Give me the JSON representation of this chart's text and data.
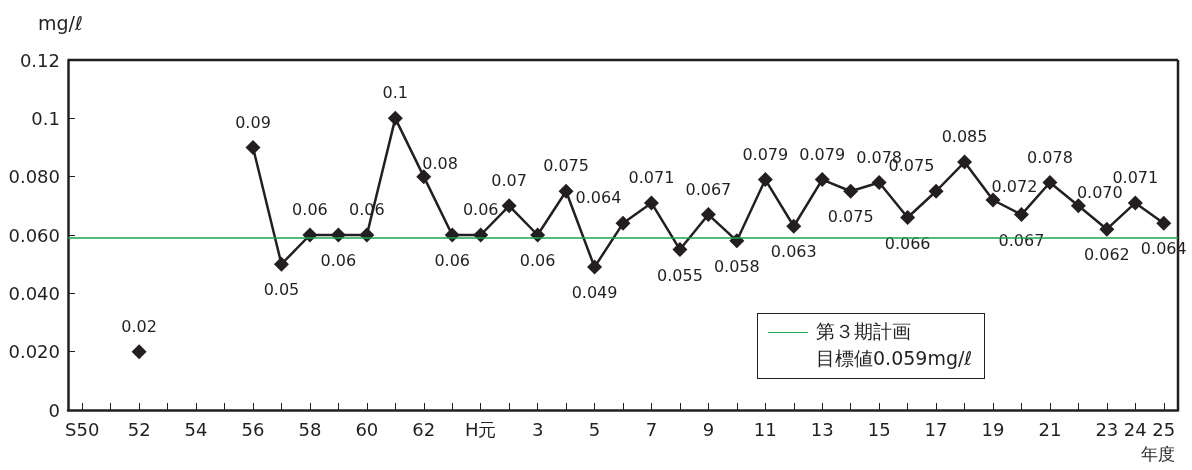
{
  "chart_data": {
    "type": "line",
    "ylabel": "mg/ℓ",
    "xlabel": "年度",
    "categories": [
      "S50",
      null,
      "52",
      null,
      "54",
      null,
      "56",
      null,
      "58",
      null,
      "60",
      null,
      "62",
      null,
      "H元",
      null,
      "3",
      null,
      "5",
      null,
      "7",
      null,
      "9",
      null,
      "11",
      null,
      "13",
      null,
      "15",
      null,
      "17",
      null,
      "19",
      null,
      "21",
      null,
      "23",
      "24",
      "25"
    ],
    "series": [
      {
        "color": "#231f20",
        "values": [
          null,
          null,
          0.02,
          null,
          null,
          null,
          0.09,
          0.05,
          0.06,
          0.06,
          0.06,
          0.1,
          0.08,
          0.06,
          0.06,
          0.07,
          0.06,
          0.075,
          0.049,
          0.064,
          0.071,
          0.055,
          0.067,
          0.058,
          0.079,
          0.063,
          0.079,
          0.075,
          0.078,
          0.066,
          0.075,
          0.085,
          0.072,
          0.067,
          0.078,
          0.07,
          0.062,
          0.071,
          0.064
        ],
        "value_labels": [
          null,
          null,
          "0.02",
          null,
          null,
          null,
          "0.09",
          "0.05",
          "0.06",
          "0.06",
          "0.06",
          "0.1",
          "0.08",
          "0.06",
          "0.06",
          "0.07",
          "0.06",
          "0.075",
          "0.049",
          "0.064",
          "0.071",
          "0.055",
          "0.067",
          "0.058",
          "0.079",
          "0.063",
          "0.079",
          "0.075",
          "0.078",
          "0.066",
          "0.075",
          "0.085",
          "0.072",
          "0.067",
          "0.078",
          "0.070",
          "0.062",
          "0.071",
          "0.064"
        ]
      }
    ],
    "ylim": [
      0,
      0.12
    ],
    "yticks": [
      0,
      {
        "value": 0.02,
        "label": "0.020"
      },
      {
        "value": 0.04,
        "label": "0.040"
      },
      {
        "value": 0.06,
        "label": "0.060"
      },
      {
        "value": 0.08,
        "label": "0.080"
      },
      0.1,
      0.12
    ],
    "ref_lines": [
      {
        "axis": "y",
        "value": 0.059,
        "label": "第３期計画",
        "color": "#1aa64a"
      }
    ],
    "annotations": [
      "目標値0.059mg/ℓ"
    ],
    "marker": "diamond",
    "line_style": "solid",
    "grid": false
  }
}
